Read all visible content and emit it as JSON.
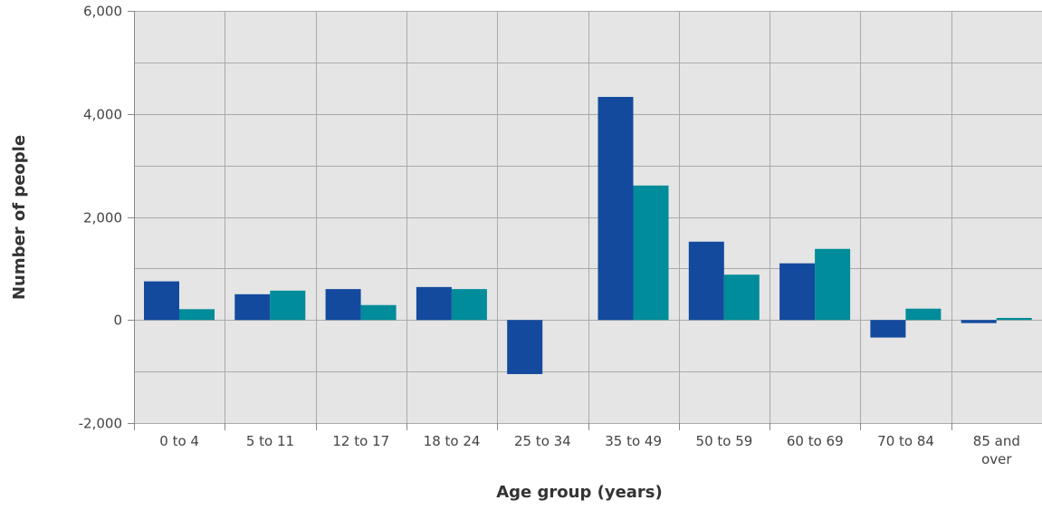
{
  "chart_data": {
    "type": "bar",
    "xlabel": "Age group (years)",
    "ylabel": "Number of people",
    "ylim": [
      -2000,
      6000
    ],
    "y_ticks": [
      -2000,
      0,
      2000,
      4000,
      6000
    ],
    "y_tick_labels": [
      "-2,000",
      "0",
      "2,000",
      "4,000",
      "6,000"
    ],
    "grid": true,
    "categories": [
      "0 to 4",
      "5 to 11",
      "12 to 17",
      "18 to 24",
      "25 to 34",
      "35 to 49",
      "50 to 59",
      "60 to 69",
      "70 to 84",
      "85 and over"
    ],
    "category_lines": [
      [
        "0 to 4"
      ],
      [
        "5 to 11"
      ],
      [
        "12 to 17"
      ],
      [
        "18 to 24"
      ],
      [
        "25 to 34"
      ],
      [
        "35 to 49"
      ],
      [
        "50 to 59"
      ],
      [
        "60 to 69"
      ],
      [
        "70 to 84"
      ],
      [
        "85 and",
        "over"
      ]
    ],
    "series": [
      {
        "color": "#134a9e",
        "values": [
          750,
          500,
          600,
          640,
          -1050,
          4330,
          1520,
          1100,
          -340,
          -60
        ]
      },
      {
        "color": "#008c9a",
        "values": [
          210,
          570,
          290,
          600,
          0,
          2610,
          880,
          1380,
          220,
          40
        ]
      }
    ]
  },
  "colors": {
    "plot_background": "#e5e5e5",
    "gridline": "#aaaaaa",
    "axis": "#888888"
  }
}
